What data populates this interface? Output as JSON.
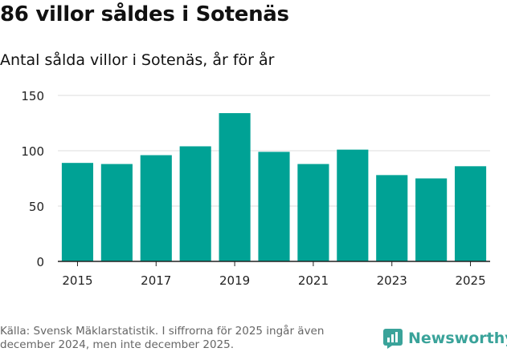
{
  "headline": "86 villor såldes i Sotenäs",
  "subtitle": "Antal sålda villor i Sotenäs, år för år",
  "source": "Källa: Svensk Mäklarstatistik. I siffrorna för 2025 ingår även december 2024, men inte december 2025.",
  "brand": {
    "name": "Newsworthy",
    "icon": "newsworthy-logo-icon",
    "color": "#3aa39a"
  },
  "colors": {
    "bar": "#00a295",
    "grid": "#dddddd",
    "axis": "#222222"
  },
  "chart_data": {
    "type": "bar",
    "title": "Antal sålda villor i Sotenäs, år för år",
    "xlabel": "",
    "ylabel": "",
    "categories": [
      "2015",
      "2016",
      "2017",
      "2018",
      "2019",
      "2020",
      "2021",
      "2022",
      "2023",
      "2024",
      "2025"
    ],
    "values": [
      89,
      88,
      96,
      104,
      134,
      99,
      88,
      101,
      78,
      75,
      86
    ],
    "ylim": [
      0,
      150
    ],
    "yticks": [
      0,
      50,
      100,
      150
    ],
    "xticks": [
      "2015",
      "2017",
      "2019",
      "2021",
      "2023",
      "2025"
    ],
    "grid": true
  }
}
